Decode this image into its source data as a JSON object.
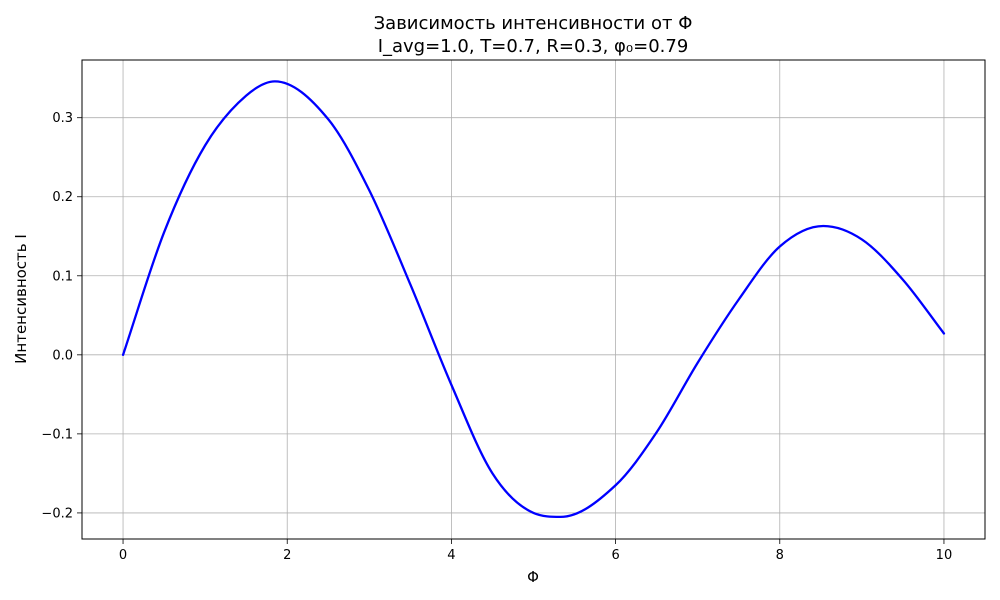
{
  "chart_data": {
    "type": "line",
    "title": "Зависимость интенсивности от Φ",
    "subtitle": "I_avg=1.0, T=0.7, R=0.3, φ₀=0.79",
    "xlabel": "Φ",
    "ylabel": "Интенсивность I",
    "xlim": [
      -0.5,
      10.5
    ],
    "ylim": [
      -0.233,
      0.373
    ],
    "xticks": [
      0,
      2,
      4,
      6,
      8,
      10
    ],
    "yticks": [
      -0.2,
      -0.1,
      0.0,
      0.1,
      0.2,
      0.3
    ],
    "xtick_labels": [
      "0",
      "2",
      "4",
      "6",
      "8",
      "10"
    ],
    "ytick_labels": [
      "−0.2",
      "−0.1",
      "0.0",
      "0.1",
      "0.2",
      "0.3"
    ],
    "grid": true,
    "series": [
      {
        "color": "#0000ff",
        "x": [
          0,
          0.5,
          1.0,
          1.5,
          1.85,
          2.5,
          3.0,
          3.5,
          4.0,
          4.5,
          5.0,
          5.33,
          6.0,
          6.5,
          7.0,
          7.5,
          8.0,
          8.53,
          9.0,
          9.5,
          10.0
        ],
        "y": [
          0.0,
          0.155,
          0.265,
          0.328,
          0.346,
          0.298,
          0.208,
          0.089,
          -0.038,
          -0.15,
          -0.2,
          -0.205,
          -0.165,
          -0.098,
          -0.01,
          0.07,
          0.137,
          0.163,
          0.146,
          0.095,
          0.027
        ]
      }
    ]
  }
}
